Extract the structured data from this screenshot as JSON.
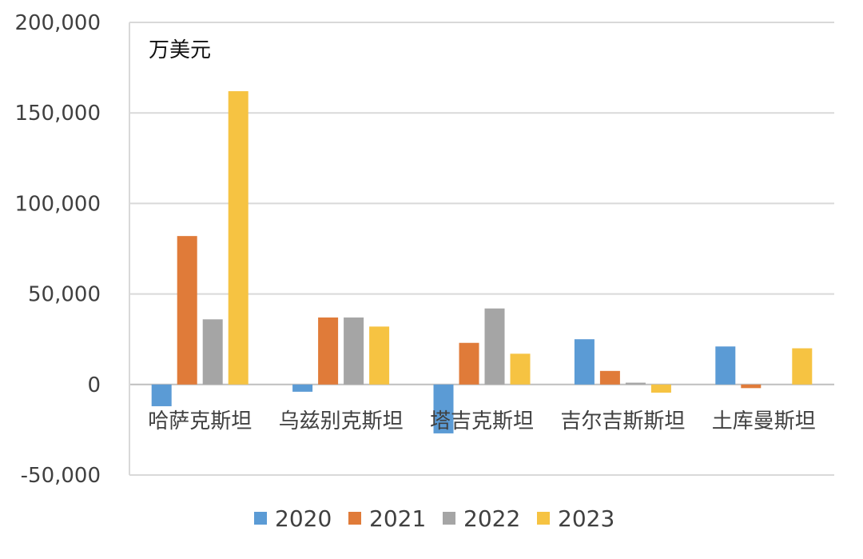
{
  "chart_data": {
    "type": "bar",
    "unit_label": "万美元",
    "categories": [
      "哈萨克斯坦",
      "乌兹别克斯坦",
      "塔吉克斯坦",
      "吉尔吉斯斯坦",
      "土库曼斯坦"
    ],
    "series": [
      {
        "name": "2020",
        "color": "#5b9bd5",
        "values": [
          -12000,
          -4000,
          -27000,
          25000,
          21000
        ]
      },
      {
        "name": "2021",
        "color": "#e07b39",
        "values": [
          82000,
          37000,
          23000,
          7500,
          -2000
        ]
      },
      {
        "name": "2022",
        "color": "#a5a5a5",
        "values": [
          36000,
          37000,
          42000,
          1000,
          0
        ]
      },
      {
        "name": "2023",
        "color": "#f6c342",
        "values": [
          162000,
          32000,
          17000,
          -4500,
          20000
        ]
      }
    ],
    "ylim": [
      -50000,
      200000
    ],
    "yticks": [
      -50000,
      0,
      50000,
      100000,
      150000,
      200000
    ],
    "ytick_labels": [
      "-50,000",
      "0",
      "50,000",
      "100,000",
      "150,000",
      "200,000"
    ],
    "grid": true,
    "legend_position": "bottom"
  }
}
